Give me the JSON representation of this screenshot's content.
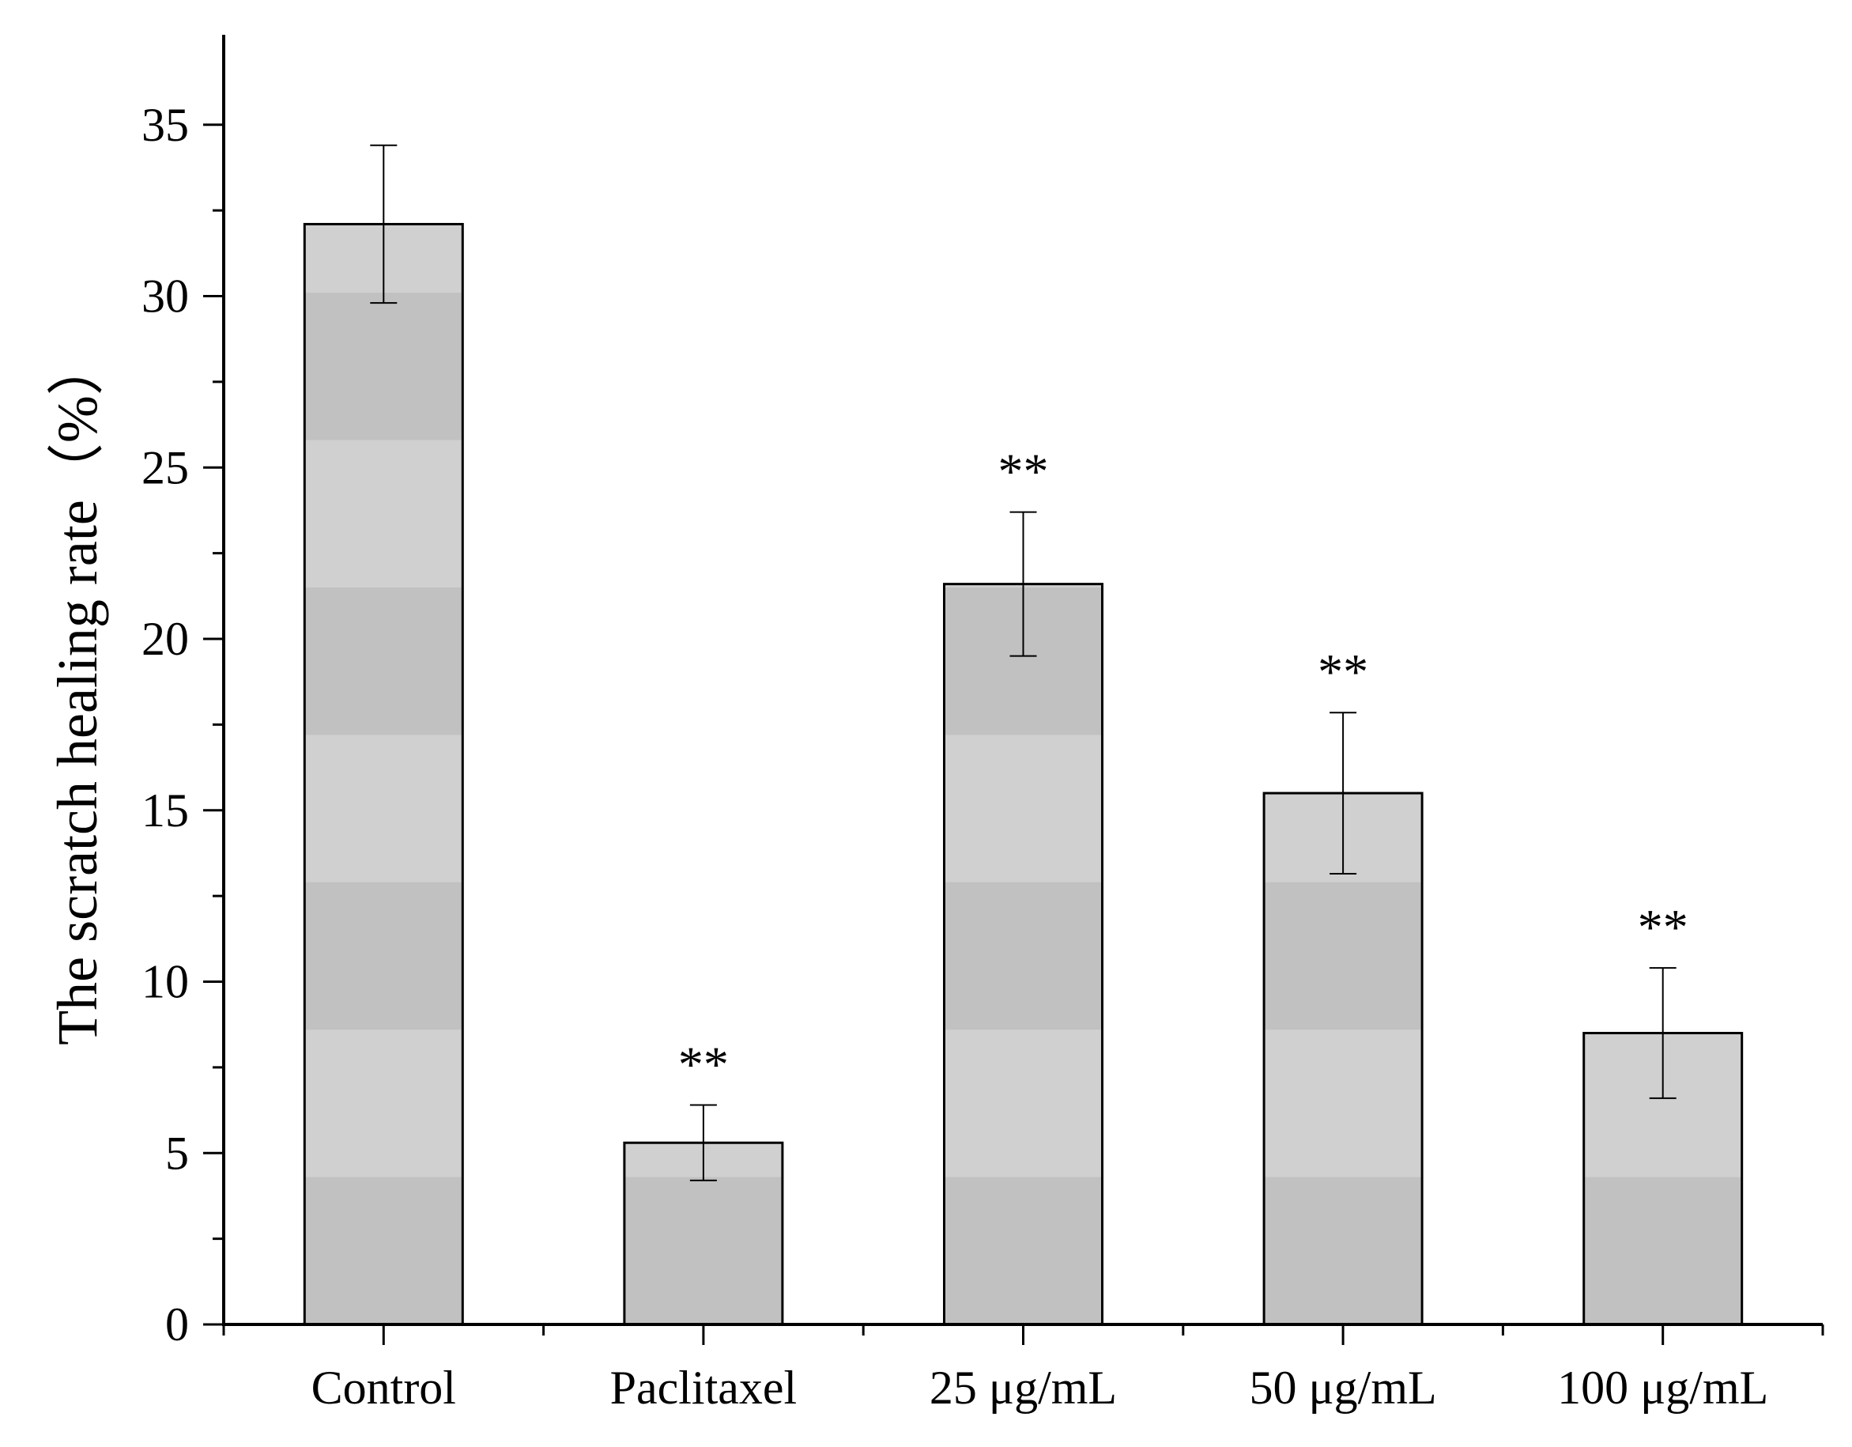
{
  "chart_data": {
    "type": "bar",
    "title": "",
    "xlabel": "",
    "ylabel": "The scratch healing rate（%）",
    "categories": [
      "Control",
      "Paclitaxel",
      "25 μg/mL",
      "50 μg/mL",
      "100 μg/mL"
    ],
    "values": [
      32.1,
      5.3,
      21.6,
      15.5,
      8.5
    ],
    "error": [
      2.3,
      1.1,
      2.1,
      2.35,
      1.9
    ],
    "significance": [
      "",
      "**",
      "**",
      "**",
      "**"
    ],
    "ylim": [
      0,
      37.5
    ],
    "yticks": [
      0,
      5,
      10,
      15,
      20,
      25,
      30,
      35
    ],
    "ytick_labels": [
      "0",
      "5",
      "10",
      "15",
      "20",
      "25",
      "30",
      "35"
    ],
    "grid": false,
    "bar_fill_dark": "#c1c1c1",
    "bar_fill_light": "#d0d0d0",
    "stripe_period": 4.3
  }
}
